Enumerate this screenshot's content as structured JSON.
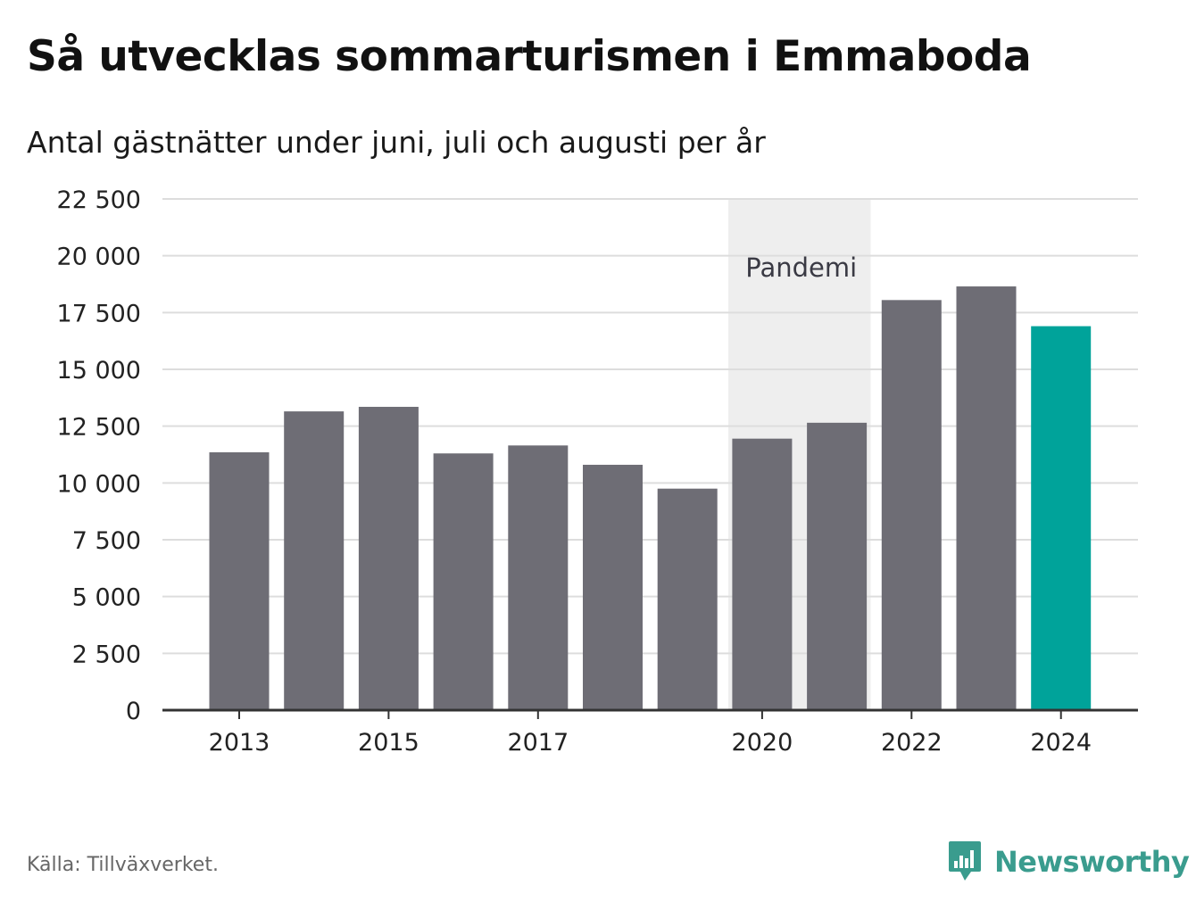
{
  "header": {
    "title": "Så utvecklas sommarturismen i Emmaboda",
    "subtitle": "Antal gästnätter under juni, juli och augusti per år"
  },
  "footer": {
    "source": "Källa: Tillväxverket.",
    "brand": "Newsworthy"
  },
  "colors": {
    "bar": "#6e6d75",
    "highlight": "#00a39a",
    "band": "#eeeeee",
    "grid": "#dddddd",
    "axis": "#333333",
    "brand": "#3a9c8e"
  },
  "chart_data": {
    "type": "bar",
    "categories": [
      "2013",
      "2014",
      "2015",
      "2016",
      "2017",
      "2018",
      "2019",
      "2020",
      "2021",
      "2022",
      "2023",
      "2024"
    ],
    "values": [
      11350,
      13150,
      13350,
      11300,
      11650,
      10800,
      9750,
      11950,
      12650,
      18050,
      18650,
      16900
    ],
    "highlight_index": 11,
    "x_tick_labels": [
      "2013",
      "",
      "2015",
      "",
      "2017",
      "",
      "",
      "2020",
      "",
      "2022",
      "",
      "2024"
    ],
    "y_ticks": [
      0,
      2500,
      5000,
      7500,
      10000,
      12500,
      15000,
      17500,
      20000,
      22500
    ],
    "y_tick_labels": [
      "0",
      "2 500",
      "5 000",
      "7 500",
      "10 000",
      "12 500",
      "15 000",
      "17 500",
      "20 000",
      "22 500"
    ],
    "ylim": [
      0,
      22500
    ],
    "xlabel": "",
    "ylabel": "",
    "grid": true,
    "annotation": {
      "label": "Pandemi",
      "from_category": "2020",
      "to_category": "2021"
    }
  }
}
